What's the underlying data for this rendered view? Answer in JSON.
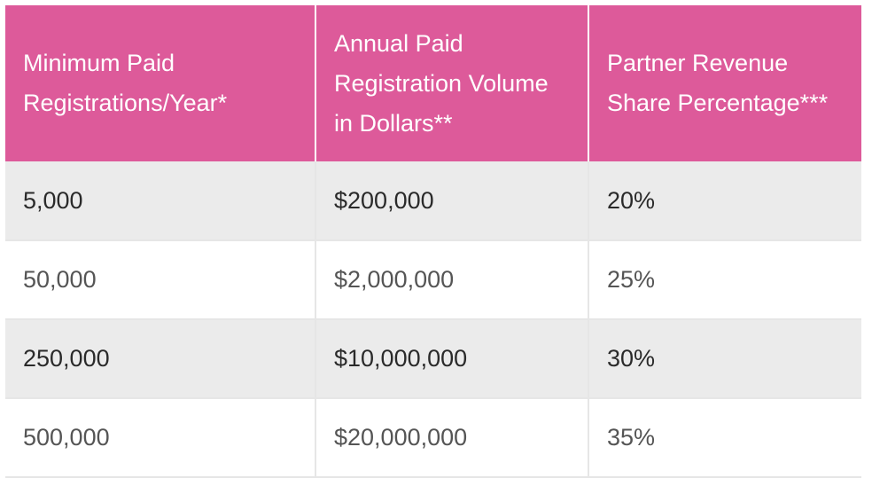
{
  "table": {
    "headers": [
      "Minimum Paid Registrations/Year*",
      "Annual Paid Registration Volume in Dollars**",
      "Partner Revenue Share Percentage***"
    ],
    "rows": [
      [
        "5,000",
        "$200,000",
        "20%"
      ],
      [
        "50,000",
        "$2,000,000",
        "25%"
      ],
      [
        "250,000",
        "$10,000,000",
        "30%"
      ],
      [
        "500,000",
        "$20,000,000",
        "35%"
      ]
    ]
  },
  "colors": {
    "header_bg": "#dd5a9a",
    "header_text": "#ffffff",
    "row_shaded": "#ebebeb",
    "row_plain": "#ffffff"
  }
}
